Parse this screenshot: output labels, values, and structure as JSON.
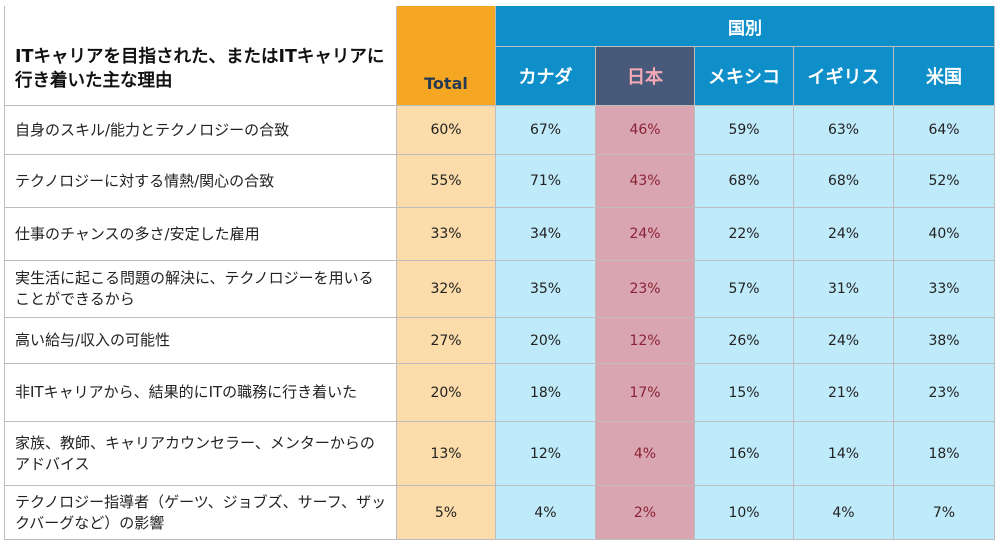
{
  "header": {
    "question": "ITキャリアを目指された、またはITキャリアに行き着いた主な理由",
    "total_label": "Total",
    "group_label": "国別"
  },
  "chart_data": {
    "type": "table",
    "title": "ITキャリアを目指された、またはITキャリアに行き着いた主な理由",
    "highlight": "日本",
    "columns": [
      "Total",
      "カナダ",
      "日本",
      "メキシコ",
      "イギリス",
      "米国"
    ],
    "rows": [
      {
        "label": "自身のスキル/能力とテクノロジーの合致",
        "values": [
          "60%",
          "67%",
          "46%",
          "59%",
          "63%",
          "64%"
        ]
      },
      {
        "label": "テクノロジーに対する情熱/関心の合致",
        "values": [
          "55%",
          "71%",
          "43%",
          "68%",
          "68%",
          "52%"
        ]
      },
      {
        "label": "仕事のチャンスの多さ/安定した雇用",
        "values": [
          "33%",
          "34%",
          "24%",
          "22%",
          "24%",
          "40%"
        ]
      },
      {
        "label": "実生活に起こる問題の解決に、テクノロジーを用いることができるから",
        "values": [
          "32%",
          "35%",
          "23%",
          "57%",
          "31%",
          "33%"
        ]
      },
      {
        "label": "高い給与/収入の可能性",
        "values": [
          "27%",
          "20%",
          "12%",
          "26%",
          "24%",
          "38%"
        ]
      },
      {
        "label": "非ITキャリアから、結果的にITの職務に行き着いた",
        "values": [
          "20%",
          "18%",
          "17%",
          "15%",
          "21%",
          "23%"
        ]
      },
      {
        "label": "家族、教師、キャリアカウンセラー、メンターからのアドバイス",
        "values": [
          "13%",
          "12%",
          "4%",
          "16%",
          "14%",
          "18%"
        ]
      },
      {
        "label": "テクノロジー指導者（ゲーツ、ジョブズ、サーフ、ザックバーグなど）の影響",
        "values": [
          "5%",
          "4%",
          "2%",
          "10%",
          "4%",
          "7%"
        ]
      }
    ]
  }
}
